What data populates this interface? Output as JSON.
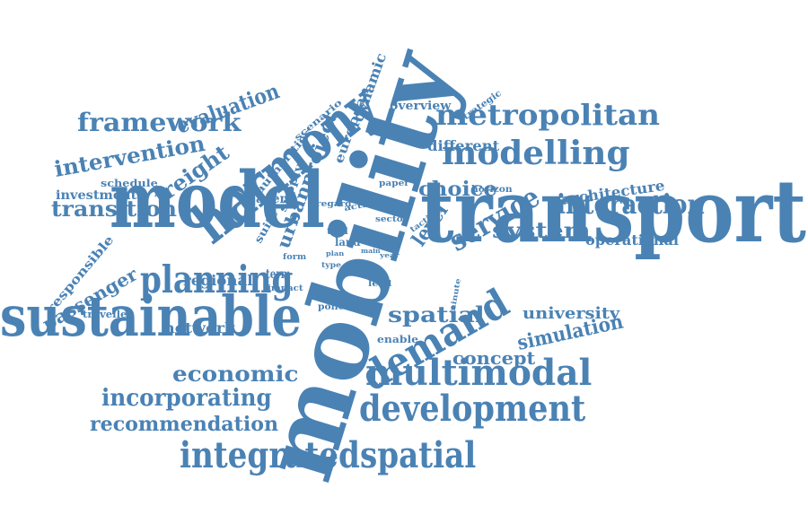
{
  "color": "#4a82b4",
  "background": "#ffffff",
  "words": [
    {
      "text": "transport"
    },
    {
      "text": "mobility"
    },
    {
      "text": "model"
    },
    {
      "text": "sustainable"
    },
    {
      "text": "harmony"
    },
    {
      "text": "planning"
    },
    {
      "text": "demand"
    },
    {
      "text": "development"
    },
    {
      "text": "multimodal"
    },
    {
      "text": "integratedspatial"
    },
    {
      "text": "modelling"
    },
    {
      "text": "metropolitan"
    },
    {
      "text": "service"
    },
    {
      "text": "interaction"
    },
    {
      "text": "framework"
    },
    {
      "text": "incorporating"
    },
    {
      "text": "recommendation"
    },
    {
      "text": "economic"
    },
    {
      "text": "system"
    },
    {
      "text": "spatial"
    },
    {
      "text": "transition"
    },
    {
      "text": "intervention"
    },
    {
      "text": "evaluation"
    },
    {
      "text": "freight"
    },
    {
      "text": "choice"
    },
    {
      "text": "level"
    },
    {
      "text": "simulation"
    },
    {
      "text": "concept"
    },
    {
      "text": "university"
    },
    {
      "text": "passenger"
    },
    {
      "text": "regional"
    },
    {
      "text": "urbanproject"
    },
    {
      "text": "network"
    },
    {
      "text": "different"
    },
    {
      "text": "operational"
    },
    {
      "text": "architecture"
    },
    {
      "text": "investment"
    },
    {
      "text": "responsible"
    },
    {
      "text": "dynamic"
    },
    {
      "text": "european"
    },
    {
      "text": "overview"
    },
    {
      "text": "agent"
    },
    {
      "text": "term"
    },
    {
      "text": "area"
    },
    {
      "text": "schedule"
    },
    {
      "text": "policies"
    },
    {
      "text": "traveller"
    },
    {
      "text": "enable"
    },
    {
      "text": "land"
    },
    {
      "text": "supply"
    },
    {
      "text": "authorities"
    },
    {
      "text": "suite"
    },
    {
      "text": "scenario"
    },
    {
      "text": "strategic"
    },
    {
      "text": "horizon"
    },
    {
      "text": "paper"
    },
    {
      "text": "activity"
    },
    {
      "text": "tactical"
    },
    {
      "text": "sector"
    },
    {
      "text": "tool"
    },
    {
      "text": "regard"
    },
    {
      "text": "form"
    },
    {
      "text": "impact"
    },
    {
      "text": "lead"
    },
    {
      "text": "minute"
    },
    {
      "text": "type"
    },
    {
      "text": "plan"
    },
    {
      "text": "main"
    },
    {
      "text": "year"
    }
  ]
}
